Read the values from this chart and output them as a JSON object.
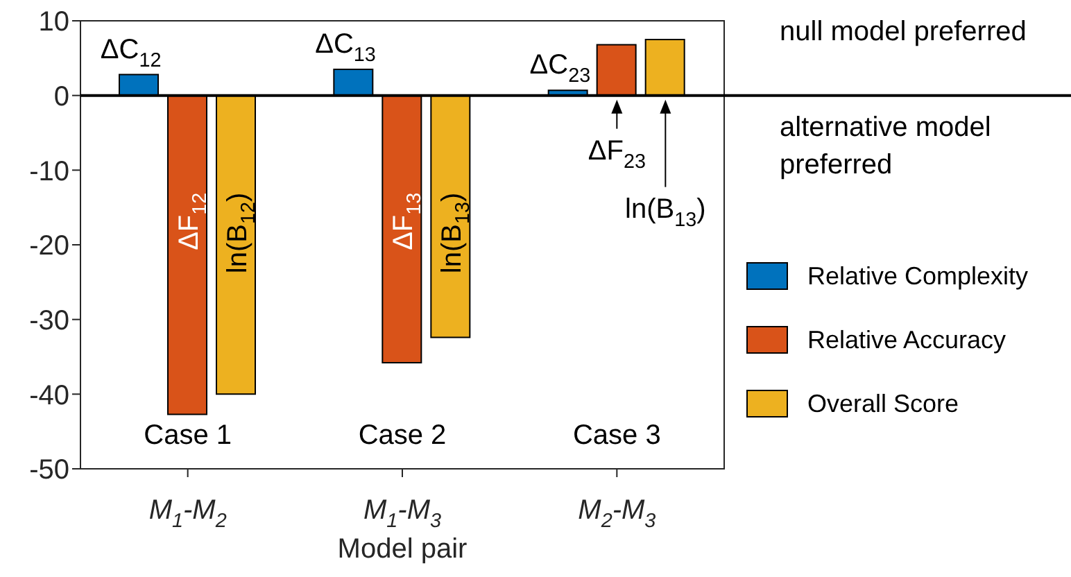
{
  "chart_data": {
    "type": "bar",
    "xlabel": "Model pair",
    "categories": [
      "M$_{1}$-M$_{2}$",
      "M$_{1}$-M$_{3}$",
      "M$_{2}$-M$_{3}$"
    ],
    "series": [
      {
        "name": "Relative Complexity",
        "color": "#0072bd",
        "values": [
          2.8,
          3.5,
          0.7
        ]
      },
      {
        "name": "Relative Accuracy",
        "color": "#d95319",
        "values": [
          -42.7,
          -35.8,
          6.8
        ]
      },
      {
        "name": "Overall Score",
        "color": "#edb120",
        "values": [
          -40,
          -32.4,
          7.5
        ]
      }
    ],
    "ylim": [
      -50,
      10
    ],
    "yticks": [
      -50,
      -40,
      -30,
      -20,
      -10,
      0,
      10
    ],
    "grid": false,
    "legend": "right",
    "ref_lines": [
      {
        "axis": "y",
        "value": 0,
        "color": "#000000"
      }
    ],
    "annotations": [
      "ΔC$_{12}$",
      "ΔC$_{13}$",
      "ΔC$_{23}$",
      "ΔF$_{12}$",
      "ΔF$_{13}$",
      "ln(B$_{12}$)",
      "ln(B$_{13}$)",
      "ΔF$_{23}$",
      "ln(B$_{13}$)",
      "Case 1",
      "Case 2",
      "Case 3",
      "null model preferred",
      "alternative model preferred"
    ]
  }
}
